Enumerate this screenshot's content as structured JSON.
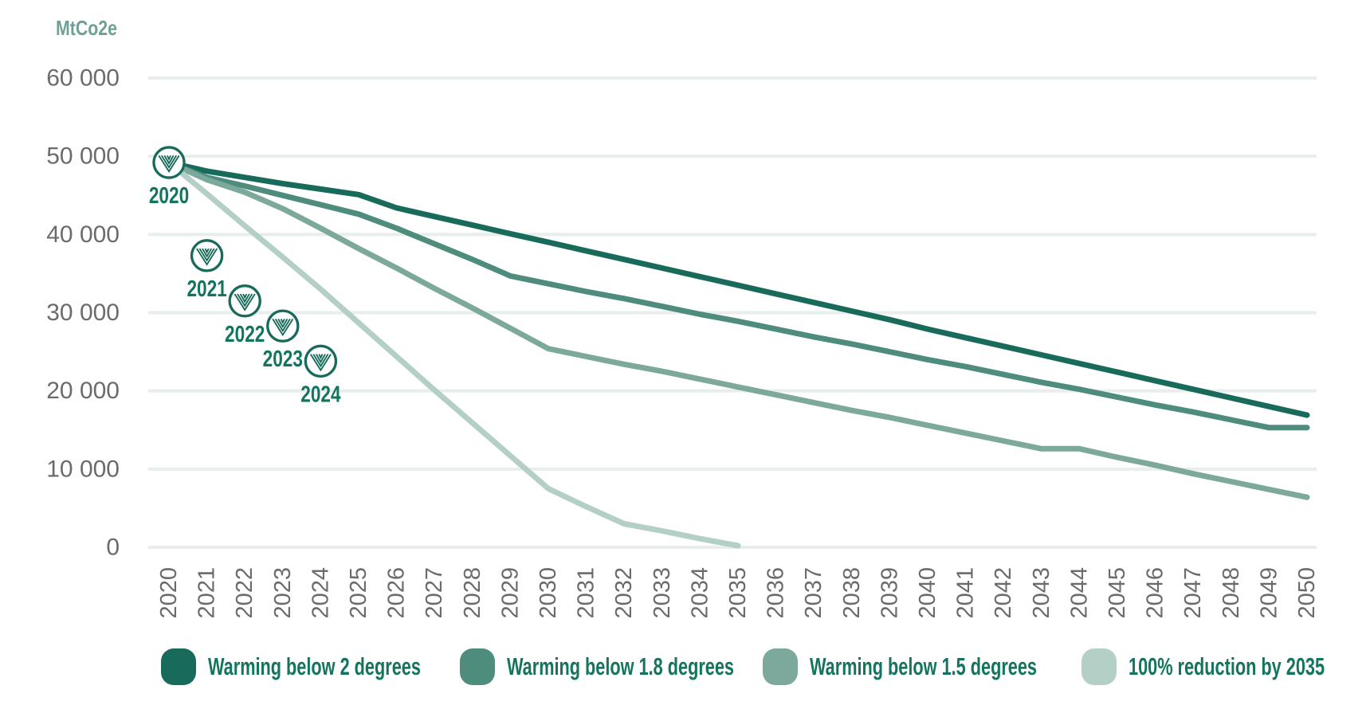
{
  "colors": {
    "grid": "#E7EEEC",
    "axis_text": "#6A6B6E",
    "legend_text": "#13745F",
    "unit_label": "#6FA096",
    "marker_ring": "#186A5B",
    "background": "#FFFFFF"
  },
  "chart_data": {
    "type": "line",
    "title": "",
    "xlabel": "",
    "ylabel": "MtCo2e",
    "ylim": [
      0,
      60000
    ],
    "grid": "horizontal",
    "legend_position": "bottom",
    "y_ticks": [
      {
        "value": 0,
        "label": "0"
      },
      {
        "value": 10000,
        "label": "10 000"
      },
      {
        "value": 20000,
        "label": "20 000"
      },
      {
        "value": 30000,
        "label": "30 000"
      },
      {
        "value": 40000,
        "label": "40 000"
      },
      {
        "value": 50000,
        "label": "50 000"
      },
      {
        "value": 60000,
        "label": "60 000"
      }
    ],
    "x_ticks": [
      2020,
      2021,
      2022,
      2023,
      2024,
      2025,
      2026,
      2027,
      2028,
      2029,
      2030,
      2031,
      2032,
      2033,
      2034,
      2035,
      2036,
      2037,
      2038,
      2039,
      2040,
      2041,
      2042,
      2043,
      2044,
      2045,
      2046,
      2047,
      2048,
      2049,
      2050
    ],
    "series": [
      {
        "name": "Warming below 2 degrees",
        "color": "#186A5B",
        "start_year": 2020,
        "values": [
          49200,
          48100,
          47300,
          46500,
          45800,
          45100,
          43400,
          42300,
          41200,
          40100,
          39000,
          37900,
          36800,
          35700,
          34600,
          33500,
          32400,
          31300,
          30200,
          29100,
          27900,
          26800,
          25700,
          24600,
          23500,
          22400,
          21300,
          20200,
          19100,
          18000,
          16900
        ]
      },
      {
        "name": "Warming below 1.8 degrees",
        "color": "#4E8C7E",
        "start_year": 2020,
        "values": [
          49200,
          47300,
          46200,
          45000,
          43800,
          42600,
          40800,
          38800,
          36800,
          34700,
          33700,
          32700,
          31800,
          30800,
          29800,
          28900,
          27900,
          26900,
          26000,
          25000,
          24000,
          23100,
          22100,
          21100,
          20200,
          19200,
          18200,
          17300,
          16300,
          15300,
          15300
        ]
      },
      {
        "name": "Warming below 1.5 degrees",
        "color": "#7CA99B",
        "start_year": 2020,
        "values": [
          49200,
          47000,
          45400,
          43300,
          40800,
          38200,
          35700,
          33100,
          30600,
          28000,
          25400,
          24400,
          23400,
          22500,
          21500,
          20500,
          19500,
          18500,
          17500,
          16600,
          15600,
          14600,
          13600,
          12600,
          12600,
          11500,
          10500,
          9400,
          8400,
          7400,
          6400
        ]
      },
      {
        "name": "100% reduction by 2035",
        "color": "#B3CFC6",
        "start_year": 2020,
        "values": [
          49200,
          45200,
          41100,
          37100,
          33000,
          28700,
          24400,
          20100,
          15900,
          11700,
          7500,
          5200,
          3000,
          2100,
          1100,
          200
        ]
      }
    ],
    "milestone_markers": {
      "description": "circled V-logo markers with year labels",
      "years": [
        2020,
        2021,
        2022,
        2023,
        2024
      ],
      "values": [
        49200,
        37300,
        31500,
        28300,
        23800
      ]
    }
  },
  "legend": {
    "items": [
      {
        "label": "Warming below 2 degrees",
        "color": "#186A5B"
      },
      {
        "label": "Warming below 1.8 degrees",
        "color": "#4E8C7E"
      },
      {
        "label": "Warming below 1.5 degrees",
        "color": "#7CA99B"
      },
      {
        "label": "100% reduction by 2035",
        "color": "#B3CFC6"
      }
    ]
  }
}
